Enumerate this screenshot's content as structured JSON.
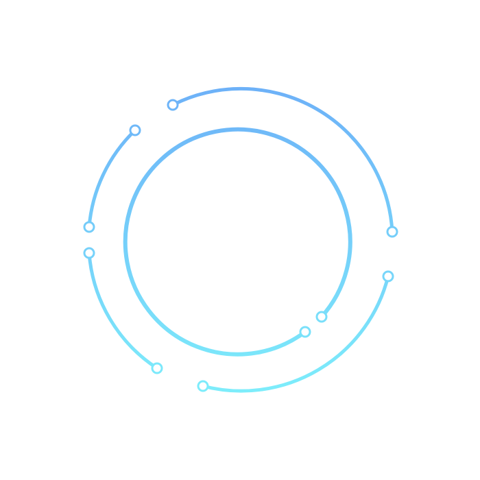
{
  "graphic": {
    "description_free": true,
    "colors": {
      "top": "#6db1f8",
      "bottom": "#7dedfb",
      "node_fill": "#ffffff"
    },
    "icons": [
      "ring-arc",
      "node-dot"
    ]
  }
}
